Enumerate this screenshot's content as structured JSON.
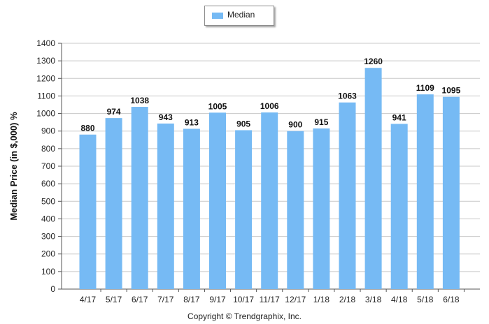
{
  "copyright": "Copyright © Trendgraphix, Inc.",
  "colors": {
    "bar": "#76baf4",
    "grid": "#c8c8c8",
    "axis": "#555555",
    "text": "#222222"
  },
  "chart_data": {
    "type": "bar",
    "categories": [
      "4/17",
      "5/17",
      "6/17",
      "7/17",
      "8/17",
      "9/17",
      "10/17",
      "11/17",
      "12/17",
      "1/18",
      "2/18",
      "3/18",
      "4/18",
      "5/18",
      "6/18"
    ],
    "series": [
      {
        "name": "Median",
        "values": [
          880,
          974,
          1038,
          943,
          913,
          1005,
          905,
          1006,
          900,
          915,
          1063,
          1260,
          941,
          1109,
          1095
        ]
      }
    ],
    "ylabel": "Median Price (in $,000) %",
    "xlabel": "",
    "ylim": [
      0,
      1400
    ],
    "yticks": [
      0,
      100,
      200,
      300,
      400,
      500,
      600,
      700,
      800,
      900,
      1000,
      1100,
      1200,
      1300,
      1400
    ],
    "grid": true,
    "legend_position": "top-center",
    "data_labels": true
  }
}
